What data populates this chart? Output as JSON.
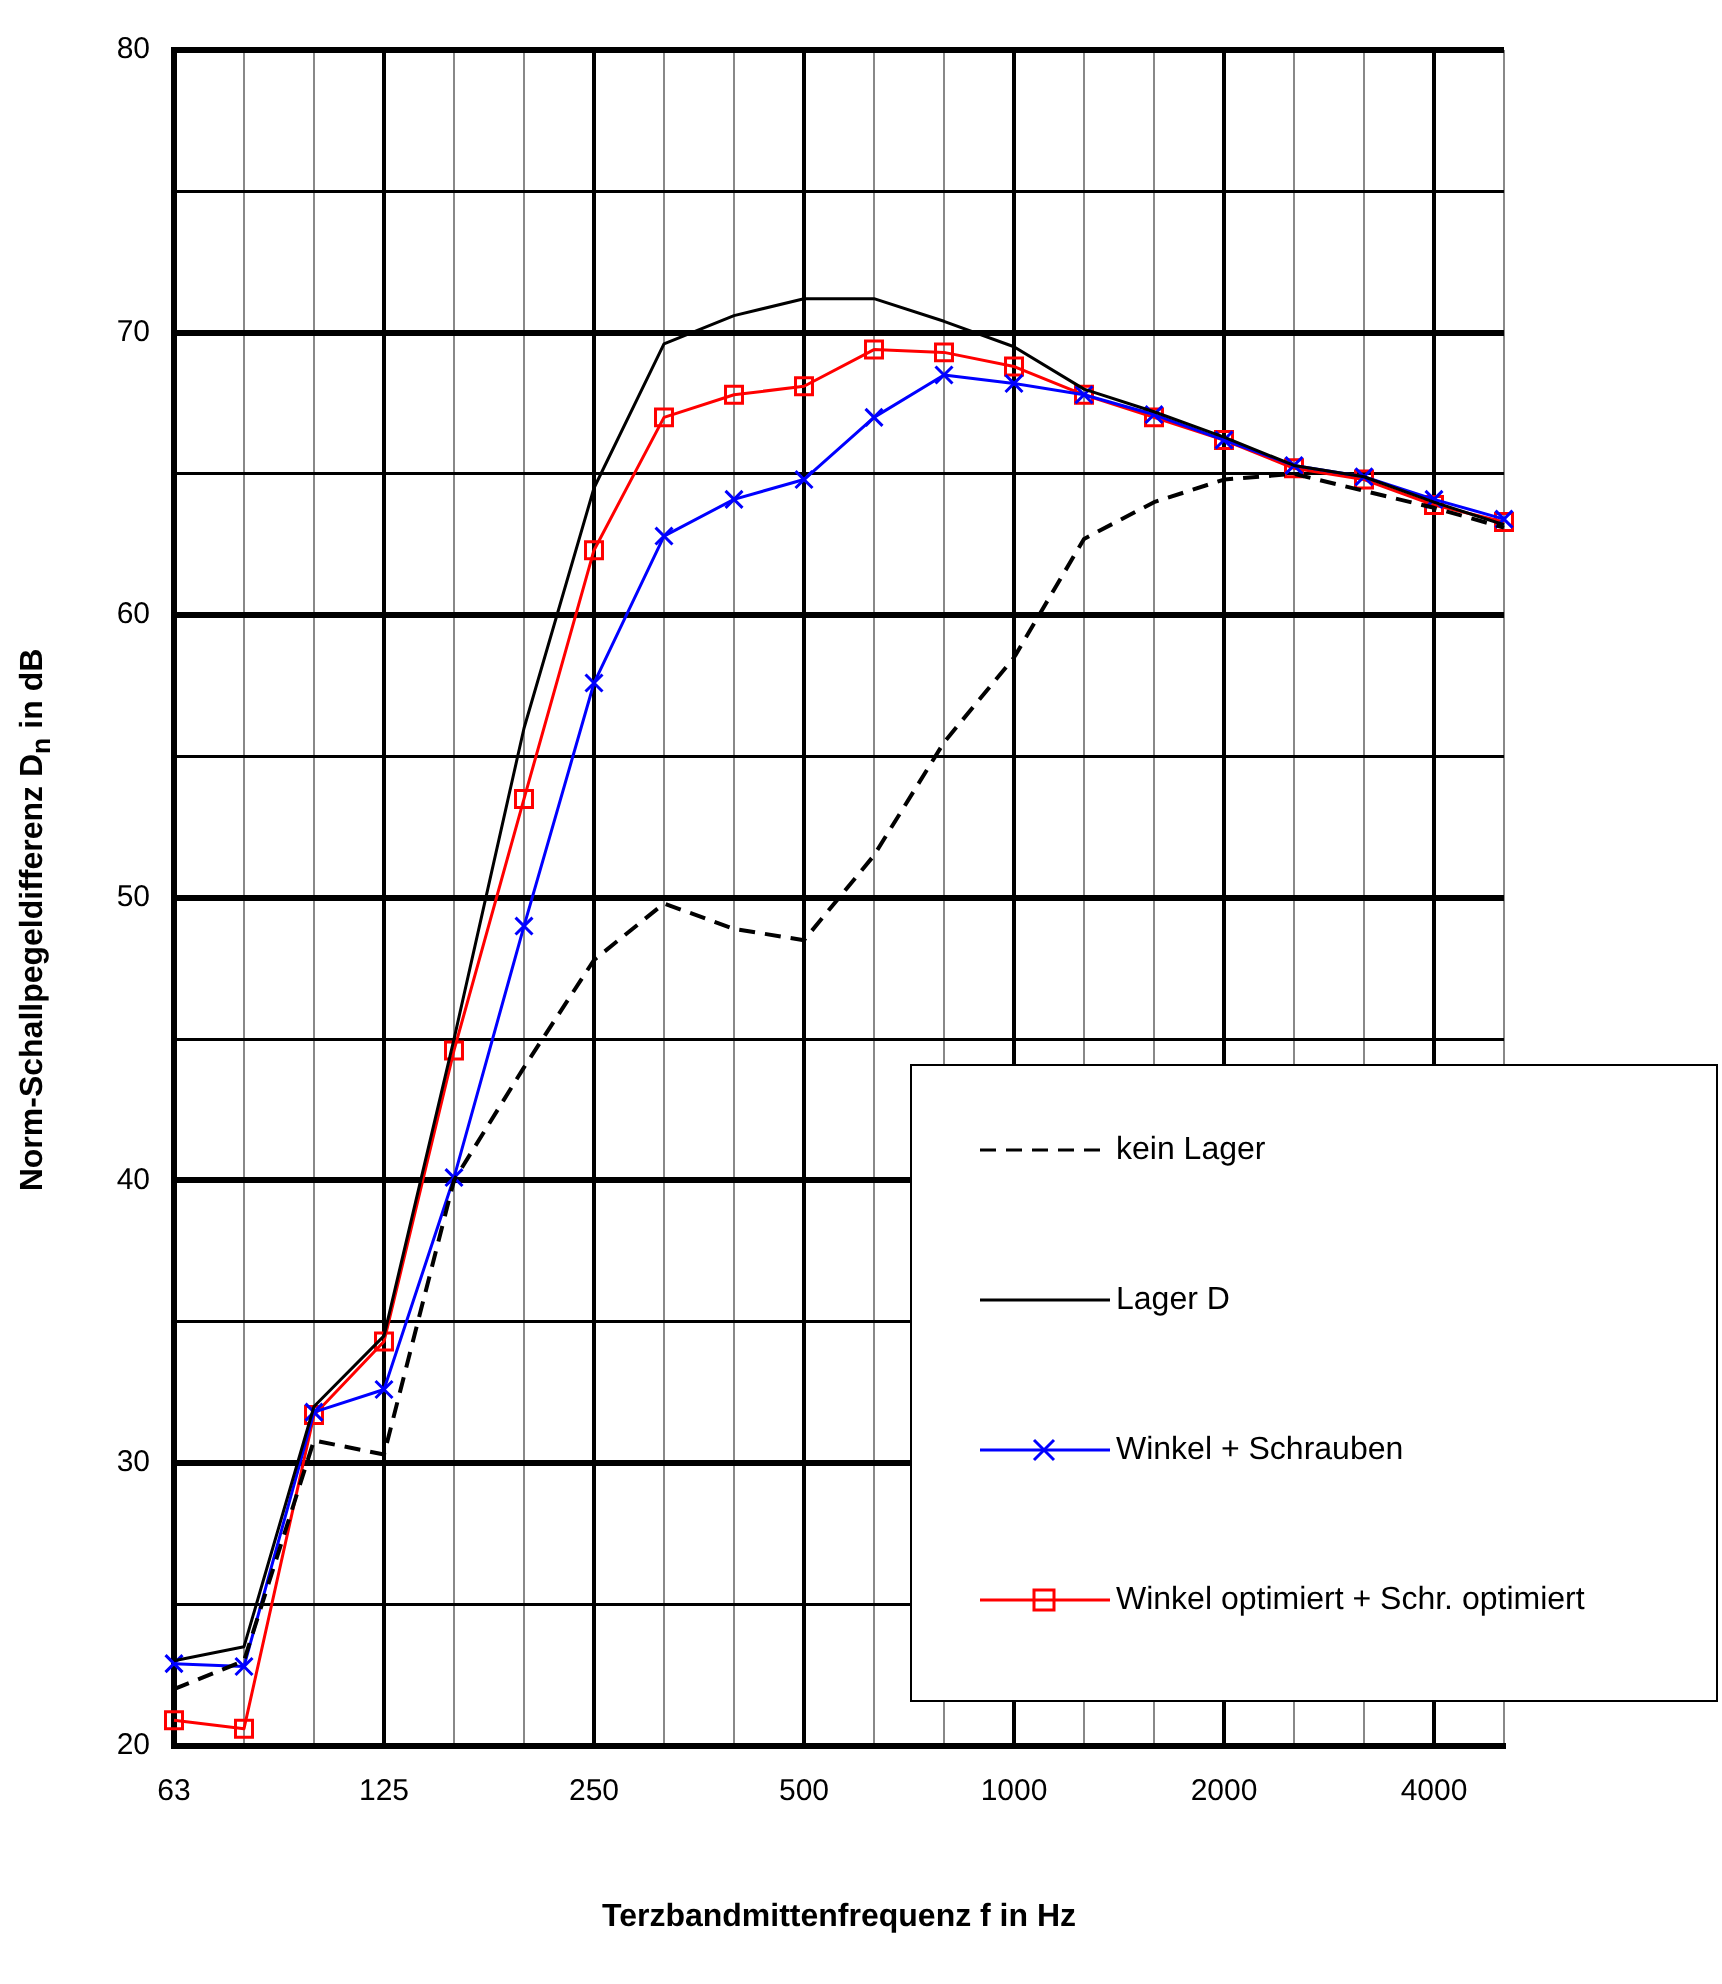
{
  "chart_data": {
    "type": "line",
    "xlabel": "Terzbandmittenfrequenz f in Hz",
    "ylabel": "Norm-Schallpegeldifferenz D$_{n}$ in dB",
    "categories": [
      "63",
      null,
      null,
      "125",
      null,
      null,
      "250",
      null,
      null,
      "500",
      null,
      null,
      "1000",
      null,
      null,
      "2000",
      null,
      null,
      "4000",
      null
    ],
    "ylim": [
      20,
      80
    ],
    "yticks": [
      20,
      {
        "value": 25,
        "label": null
      },
      30,
      {
        "value": 35,
        "label": null
      },
      40,
      {
        "value": 45,
        "label": null
      },
      50,
      {
        "value": 55,
        "label": null
      },
      60,
      {
        "value": 65,
        "label": null
      },
      70,
      {
        "value": 75,
        "label": null
      },
      80
    ],
    "grid": true,
    "legend": "bottom right",
    "series": [
      {
        "name": "kein Lager",
        "color": "#000000",
        "line_style": "dashed",
        "marker": "none",
        "values": [
          22,
          23,
          30.8,
          30.3,
          40,
          44,
          47.8,
          49.8,
          48.9,
          48.5,
          51.5,
          55.5,
          58.5,
          62.7,
          64,
          64.8,
          65,
          64.4,
          63.8,
          63.1
        ]
      },
      {
        "name": "Lager D",
        "color": "#000000",
        "line_style": "solid",
        "marker": "none",
        "values": [
          23,
          23.5,
          32,
          34.5,
          45,
          56,
          64.5,
          69.6,
          70.6,
          71.2,
          71.2,
          70.4,
          69.5,
          68,
          67.2,
          66.3,
          65.3,
          64.9,
          64,
          63.2
        ]
      },
      {
        "name": "Winkel + Schrauben",
        "color": "#0000ff",
        "line_style": "solid",
        "marker": "cross",
        "values": [
          22.9,
          22.8,
          31.8,
          32.6,
          40.1,
          49,
          57.6,
          62.8,
          64.1,
          64.8,
          67,
          68.5,
          68.2,
          67.8,
          67.1,
          66.2,
          65.3,
          64.9,
          64.1,
          63.4
        ]
      },
      {
        "name": "Winkel optimiert + Schr. optimiert",
        "color": "#ff0000",
        "line_style": "solid",
        "marker": "square",
        "values": [
          20.9,
          20.6,
          31.7,
          34.3,
          44.6,
          53.5,
          62.3,
          67,
          67.8,
          68.1,
          69.4,
          69.3,
          68.8,
          67.8,
          67,
          66.2,
          65.2,
          64.8,
          63.9,
          63.3
        ]
      }
    ]
  }
}
